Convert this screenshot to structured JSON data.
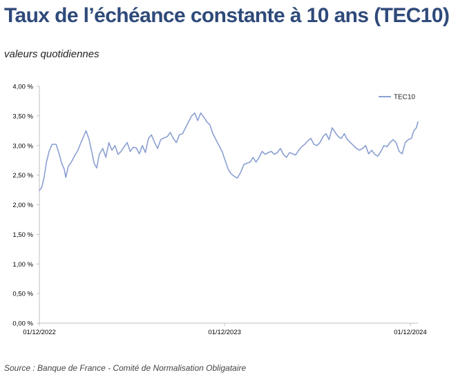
{
  "header": {
    "title": "Taux de l’échéance constante à 10 ans (TEC10)",
    "subtitle": "valeurs quotidiennes",
    "source": "Source : Banque de France - Comité de Normalisation Obligataire"
  },
  "colors": {
    "series": "#8a9fd1",
    "axis": "#bfbfbf",
    "title": "#2f4a7a"
  },
  "chart_data": {
    "type": "line",
    "title": "",
    "xlabel": "",
    "ylabel": "",
    "ylim": [
      0,
      4
    ],
    "yticks": [
      0,
      0.5,
      1,
      1.5,
      2,
      2.5,
      3,
      3.5,
      4
    ],
    "yticklabels": [
      "0,00 %",
      "0,50 %",
      "1,00 %",
      "1,50 %",
      "2,00 %",
      "2,50 %",
      "3,00 %",
      "3,50 %",
      "4,00 %"
    ],
    "xlim": [
      "2022-12-01",
      "2024-12-16"
    ],
    "xticks": [
      "2022-12-01",
      "2023-12-01",
      "2024-12-01"
    ],
    "xticklabels": [
      "01/12/2022",
      "01/12/2023",
      "01/12/2024"
    ],
    "grid": false,
    "legend": "top-right",
    "series": [
      {
        "name": "TEC10",
        "color": "#8a9fd1",
        "points": [
          [
            "2022-12-01",
            2.24
          ],
          [
            "2022-12-06",
            2.3
          ],
          [
            "2022-12-10",
            2.45
          ],
          [
            "2022-12-15",
            2.72
          ],
          [
            "2022-12-20",
            2.9
          ],
          [
            "2022-12-26",
            3.02
          ],
          [
            "2023-01-03",
            3.02
          ],
          [
            "2023-01-09",
            2.86
          ],
          [
            "2023-01-14",
            2.7
          ],
          [
            "2023-01-19",
            2.6
          ],
          [
            "2023-01-22",
            2.46
          ],
          [
            "2023-01-27",
            2.65
          ],
          [
            "2023-02-02",
            2.72
          ],
          [
            "2023-02-08",
            2.82
          ],
          [
            "2023-02-15",
            2.92
          ],
          [
            "2023-02-21",
            3.05
          ],
          [
            "2023-02-26",
            3.15
          ],
          [
            "2023-03-03",
            3.25
          ],
          [
            "2023-03-09",
            3.1
          ],
          [
            "2023-03-14",
            2.9
          ],
          [
            "2023-03-19",
            2.7
          ],
          [
            "2023-03-24",
            2.62
          ],
          [
            "2023-03-29",
            2.85
          ],
          [
            "2023-04-05",
            2.95
          ],
          [
            "2023-04-11",
            2.8
          ],
          [
            "2023-04-17",
            3.05
          ],
          [
            "2023-04-23",
            2.92
          ],
          [
            "2023-04-29",
            3.0
          ],
          [
            "2023-05-05",
            2.85
          ],
          [
            "2023-05-11",
            2.9
          ],
          [
            "2023-05-17",
            2.98
          ],
          [
            "2023-05-23",
            3.05
          ],
          [
            "2023-05-29",
            2.9
          ],
          [
            "2023-06-04",
            2.97
          ],
          [
            "2023-06-10",
            2.96
          ],
          [
            "2023-06-16",
            2.86
          ],
          [
            "2023-06-22",
            3.0
          ],
          [
            "2023-06-28",
            2.88
          ],
          [
            "2023-07-04",
            3.12
          ],
          [
            "2023-07-10",
            3.18
          ],
          [
            "2023-07-16",
            3.05
          ],
          [
            "2023-07-22",
            2.95
          ],
          [
            "2023-07-28",
            3.1
          ],
          [
            "2023-08-04",
            3.13
          ],
          [
            "2023-08-10",
            3.15
          ],
          [
            "2023-08-16",
            3.22
          ],
          [
            "2023-08-22",
            3.12
          ],
          [
            "2023-08-28",
            3.05
          ],
          [
            "2023-09-03",
            3.18
          ],
          [
            "2023-09-09",
            3.2
          ],
          [
            "2023-09-15",
            3.3
          ],
          [
            "2023-09-21",
            3.4
          ],
          [
            "2023-09-27",
            3.5
          ],
          [
            "2023-10-03",
            3.55
          ],
          [
            "2023-10-09",
            3.42
          ],
          [
            "2023-10-15",
            3.55
          ],
          [
            "2023-10-21",
            3.48
          ],
          [
            "2023-10-27",
            3.4
          ],
          [
            "2023-11-02",
            3.35
          ],
          [
            "2023-11-08",
            3.2
          ],
          [
            "2023-11-14",
            3.1
          ],
          [
            "2023-11-20",
            3.0
          ],
          [
            "2023-11-26",
            2.9
          ],
          [
            "2023-12-02",
            2.75
          ],
          [
            "2023-12-08",
            2.6
          ],
          [
            "2023-12-14",
            2.52
          ],
          [
            "2023-12-20",
            2.48
          ],
          [
            "2023-12-26",
            2.45
          ],
          [
            "2024-01-02",
            2.55
          ],
          [
            "2024-01-08",
            2.68
          ],
          [
            "2024-01-14",
            2.7
          ],
          [
            "2024-01-20",
            2.72
          ],
          [
            "2024-01-26",
            2.8
          ],
          [
            "2024-02-01",
            2.72
          ],
          [
            "2024-02-07",
            2.8
          ],
          [
            "2024-02-13",
            2.9
          ],
          [
            "2024-02-19",
            2.85
          ],
          [
            "2024-02-25",
            2.88
          ],
          [
            "2024-03-02",
            2.9
          ],
          [
            "2024-03-08",
            2.85
          ],
          [
            "2024-03-14",
            2.88
          ],
          [
            "2024-03-20",
            2.95
          ],
          [
            "2024-03-26",
            2.85
          ],
          [
            "2024-04-01",
            2.8
          ],
          [
            "2024-04-07",
            2.88
          ],
          [
            "2024-04-13",
            2.86
          ],
          [
            "2024-04-19",
            2.84
          ],
          [
            "2024-04-25",
            2.92
          ],
          [
            "2024-05-01",
            2.98
          ],
          [
            "2024-05-07",
            3.02
          ],
          [
            "2024-05-13",
            3.08
          ],
          [
            "2024-05-19",
            3.12
          ],
          [
            "2024-05-25",
            3.02
          ],
          [
            "2024-05-31",
            3.0
          ],
          [
            "2024-06-06",
            3.05
          ],
          [
            "2024-06-12",
            3.15
          ],
          [
            "2024-06-18",
            3.2
          ],
          [
            "2024-06-24",
            3.1
          ],
          [
            "2024-06-30",
            3.3
          ],
          [
            "2024-07-06",
            3.22
          ],
          [
            "2024-07-12",
            3.15
          ],
          [
            "2024-07-18",
            3.12
          ],
          [
            "2024-07-24",
            3.2
          ],
          [
            "2024-07-30",
            3.1
          ],
          [
            "2024-08-05",
            3.05
          ],
          [
            "2024-08-11",
            3.0
          ],
          [
            "2024-08-17",
            2.95
          ],
          [
            "2024-08-23",
            2.92
          ],
          [
            "2024-08-29",
            2.95
          ],
          [
            "2024-09-04",
            3.0
          ],
          [
            "2024-09-10",
            2.86
          ],
          [
            "2024-09-16",
            2.92
          ],
          [
            "2024-09-22",
            2.85
          ],
          [
            "2024-09-28",
            2.82
          ],
          [
            "2024-10-04",
            2.9
          ],
          [
            "2024-10-10",
            3.0
          ],
          [
            "2024-10-16",
            2.98
          ],
          [
            "2024-10-22",
            3.05
          ],
          [
            "2024-10-28",
            3.1
          ],
          [
            "2024-11-03",
            3.05
          ],
          [
            "2024-11-09",
            2.9
          ],
          [
            "2024-11-15",
            2.86
          ],
          [
            "2024-11-21",
            3.05
          ],
          [
            "2024-11-27",
            3.1
          ],
          [
            "2024-12-03",
            3.12
          ],
          [
            "2024-12-08",
            3.25
          ],
          [
            "2024-12-13",
            3.3
          ],
          [
            "2024-12-16",
            3.4
          ]
        ]
      }
    ]
  }
}
